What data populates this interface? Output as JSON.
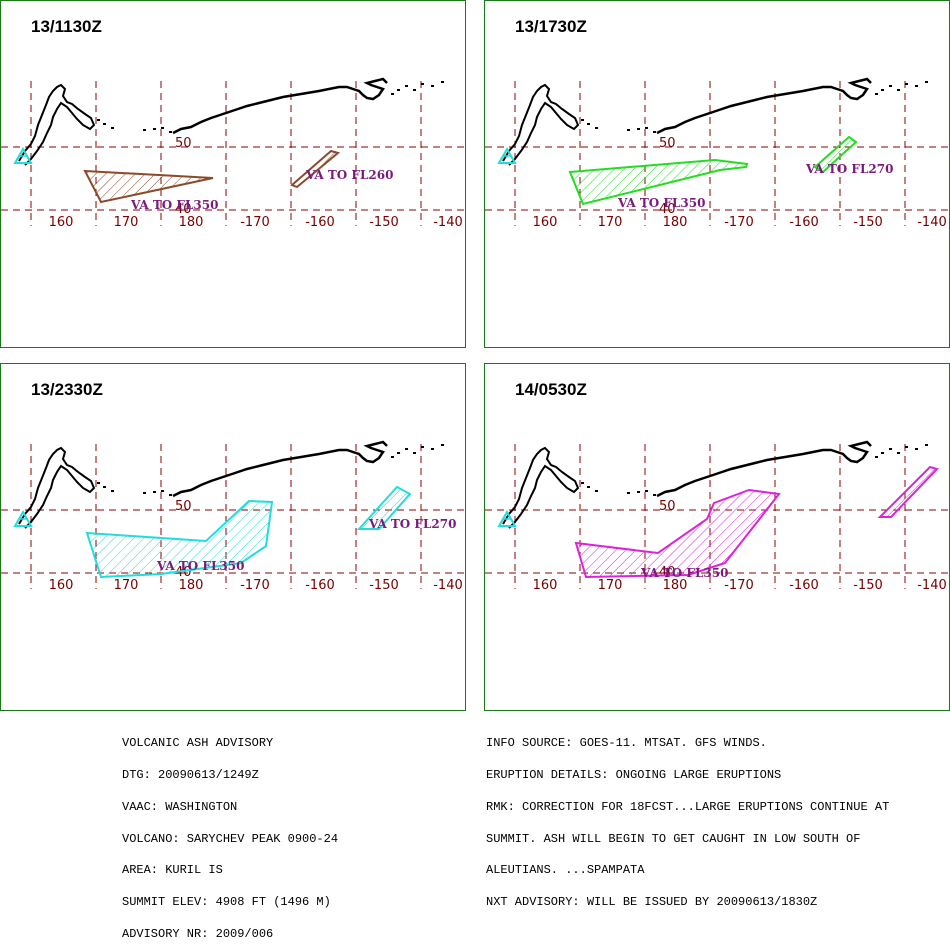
{
  "panels": [
    {
      "title": "13/1130Z",
      "color": "#8b4a2b",
      "labels": [
        "VA TO FL350",
        "VA TO FL260"
      ]
    },
    {
      "title": "13/1730Z",
      "color": "#22dd22",
      "labels": [
        "VA TO FL350",
        "VA TO FL270"
      ]
    },
    {
      "title": "13/2330Z",
      "color": "#22dddd",
      "labels": [
        "VA TO FL350",
        "VA TO FL270"
      ]
    },
    {
      "title": "14/0530Z",
      "color": "#dd22dd",
      "labels": [
        "VA TO FL350",
        ""
      ]
    }
  ],
  "grid": {
    "lon_labels": [
      "160",
      "170",
      "180",
      "-170",
      "-160",
      "-150",
      "-140"
    ],
    "lat_labels": [
      "50",
      "40"
    ],
    "line_color": "#8b0000",
    "volcano_marker_color": "#22dddd"
  },
  "advisory_left": [
    "VOLCANIC ASH ADVISORY",
    "DTG: 20090613/1249Z",
    "VAAC: WASHINGTON",
    "VOLCANO: SARYCHEV PEAK 0900-24",
    "AREA: KURIL IS",
    "SUMMIT ELEV: 4908 FT (1496 M)",
    "ADVISORY NR: 2009/006"
  ],
  "advisory_right": [
    "INFO SOURCE: GOES-11. MTSAT. GFS WINDS.",
    "ERUPTION DETAILS: ONGOING LARGE ERUPTIONS",
    "RMK: CORRECTION FOR 18FCST...LARGE ERUPTIONS CONTINUE AT",
    "SUMMIT. ASH WILL BEGIN TO GET CAUGHT IN LOW SOUTH OF",
    "ALEUTIANS. ...SPAMPATA",
    "NXT ADVISORY: WILL BE ISSUED BY 20090613/1830Z"
  ]
}
